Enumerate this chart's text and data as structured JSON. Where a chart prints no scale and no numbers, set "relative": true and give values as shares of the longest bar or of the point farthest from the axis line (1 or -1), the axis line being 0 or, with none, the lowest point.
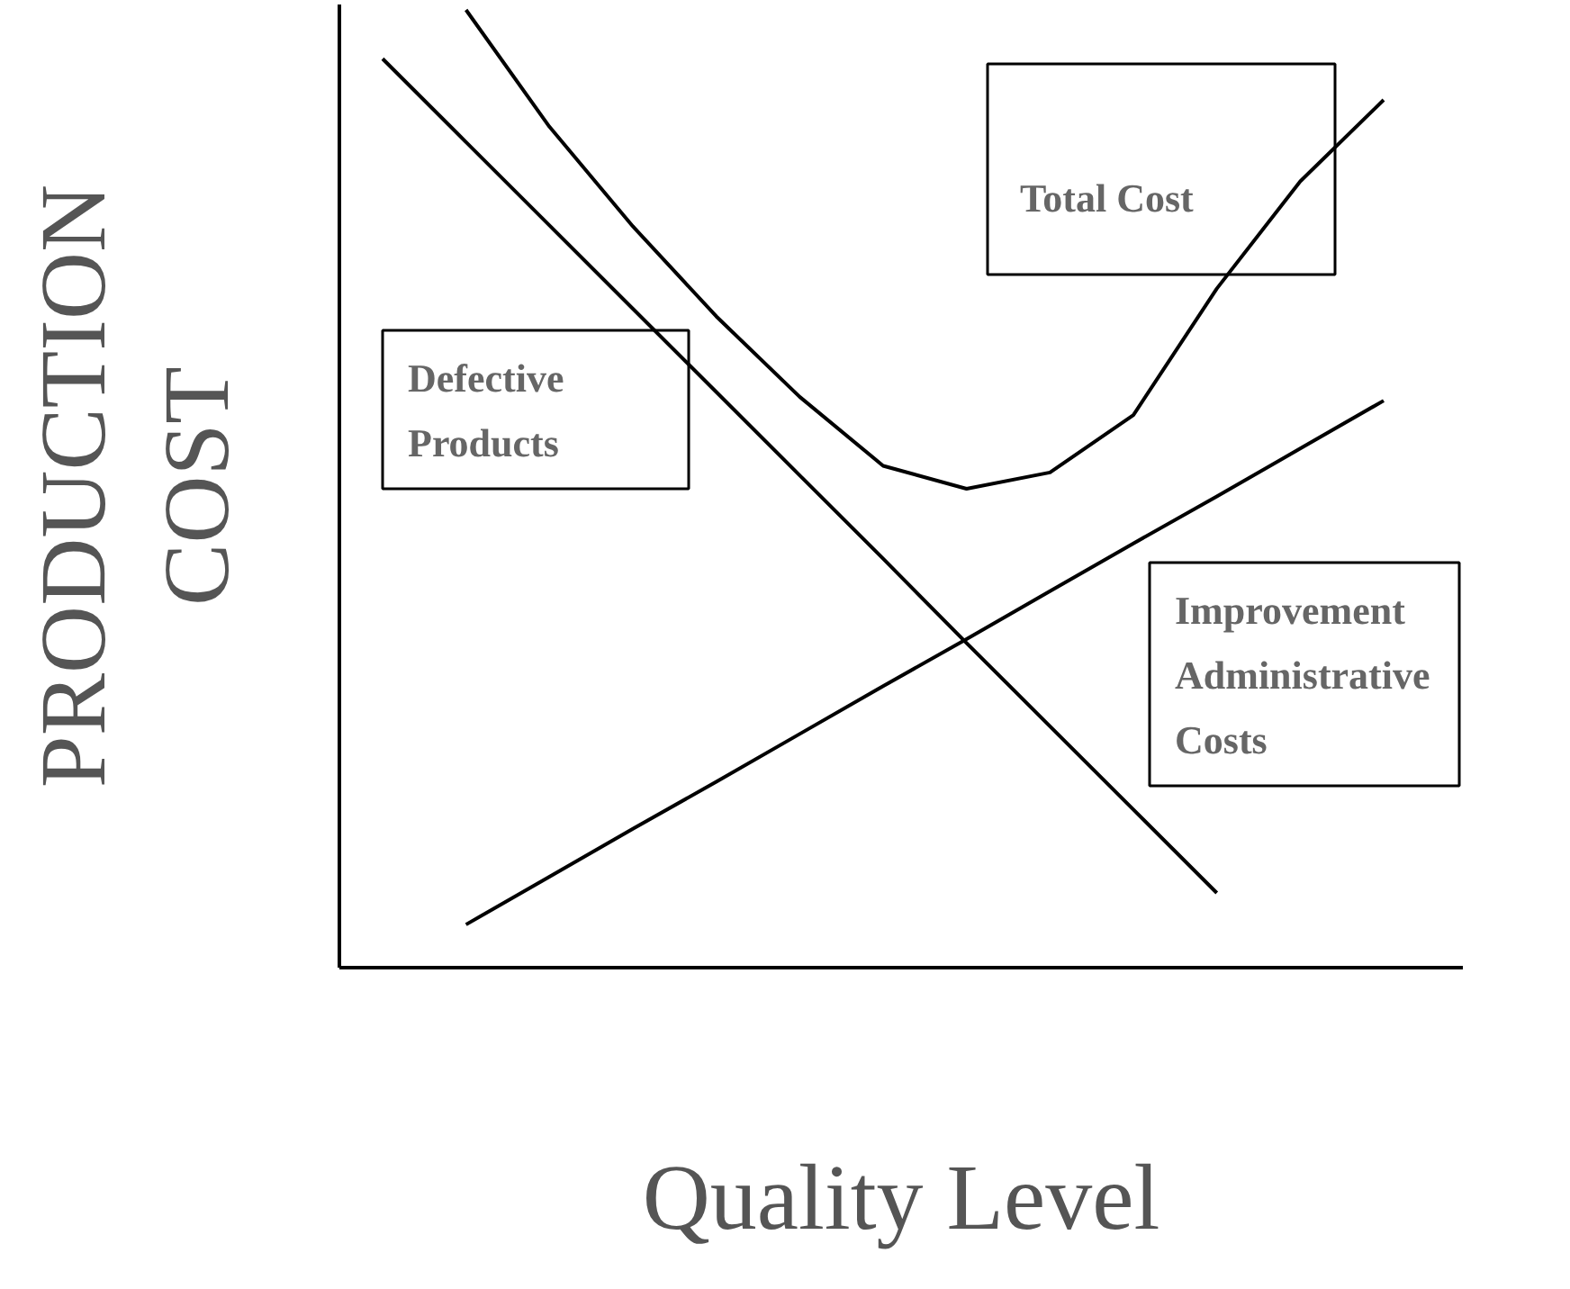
{
  "chart_data": {
    "type": "line",
    "relative": true,
    "xlabel": "Quality Level",
    "ylabel": "PRODUCTION COST",
    "categories": [
      null,
      null,
      null,
      null,
      null,
      null,
      null,
      null,
      null,
      null,
      null,
      null,
      null
    ],
    "series": [
      {
        "name": "Total Cost",
        "color": "#000000",
        "values": [
          null,
          1.0,
          0.878,
          0.774,
          0.68,
          0.596,
          0.524,
          0.5,
          0.517,
          0.577,
          0.709,
          0.821,
          0.906
        ]
      },
      {
        "name": "Defective Products",
        "color": "#000000",
        "values": [
          0.949,
          0.862,
          0.775,
          0.688,
          0.601,
          0.514,
          0.427,
          0.339,
          0.252,
          0.165,
          0.078,
          null,
          null
        ]
      },
      {
        "name": "Improvement Administrative Costs",
        "color": "#000000",
        "values": [
          null,
          0.045,
          0.095,
          0.145,
          0.194,
          0.244,
          0.294,
          0.343,
          0.393,
          0.443,
          0.492,
          0.542,
          0.592
        ]
      }
    ],
    "grid": false,
    "legend": false,
    "marker": "none",
    "line_style": "solid"
  }
}
